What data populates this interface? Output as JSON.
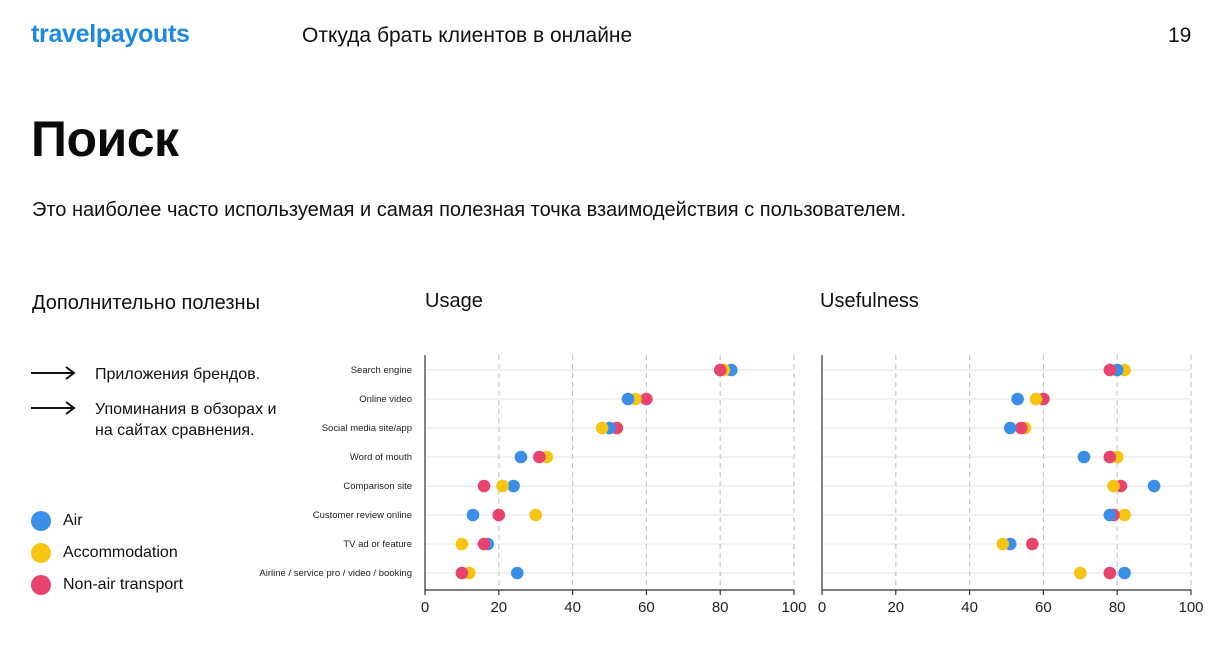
{
  "header": {
    "logo": "travelpayouts",
    "deck_title": "Откуда брать клиентов в онлайне",
    "page_number": "19"
  },
  "main": {
    "title": "Поиск",
    "subtitle": "Это наиболее часто используемая и самая полезная точка взаимодействия с пользователем."
  },
  "extra": {
    "title": "Дополнительно полезны",
    "items": [
      {
        "label": "Приложения брендов."
      },
      {
        "label": "Упоминания в обзорах и на сайтах сравнения."
      }
    ]
  },
  "legend": {
    "items": [
      {
        "label": "Air",
        "color": "#3b8ee8"
      },
      {
        "label": "Accommodation",
        "color": "#f7c412"
      },
      {
        "label": "Non-air transport",
        "color": "#e8436d"
      }
    ]
  },
  "chart_data": [
    {
      "type": "scatter",
      "title": "Usage",
      "categories": [
        "Search engine",
        "Online video",
        "Social media site/app",
        "Word of mouth",
        "Comparison site",
        "Customer review online",
        "TV ad or feature",
        "Airline / service pro / video / booking"
      ],
      "xlim": [
        0,
        100
      ],
      "xticks": [
        0,
        20,
        40,
        60,
        80,
        100
      ],
      "series": [
        {
          "name": "Air",
          "color": "#3b8ee8",
          "values": [
            83,
            55,
            50,
            26,
            24,
            13,
            17,
            25
          ]
        },
        {
          "name": "Accommodation",
          "color": "#f7c412",
          "values": [
            81,
            57,
            48,
            33,
            21,
            30,
            10,
            12
          ]
        },
        {
          "name": "Non-air transport",
          "color": "#e8436d",
          "values": [
            80,
            60,
            52,
            31,
            16,
            20,
            16,
            10
          ]
        }
      ]
    },
    {
      "type": "scatter",
      "title": "Usefulness",
      "categories": [
        "Search engine",
        "Online video",
        "Social media site/app",
        "Word of mouth",
        "Comparison site",
        "Customer review online",
        "TV ad or feature",
        "Airline / service pro / video / booking"
      ],
      "xlim": [
        0,
        100
      ],
      "xticks": [
        0,
        20,
        40,
        60,
        80,
        100
      ],
      "series": [
        {
          "name": "Air",
          "color": "#3b8ee8",
          "values": [
            80,
            53,
            51,
            71,
            90,
            78,
            51,
            82
          ]
        },
        {
          "name": "Accommodation",
          "color": "#f7c412",
          "values": [
            82,
            58,
            55,
            80,
            79,
            82,
            49,
            70
          ]
        },
        {
          "name": "Non-air transport",
          "color": "#e8436d",
          "values": [
            78,
            60,
            54,
            78,
            81,
            79,
            57,
            78
          ]
        }
      ]
    }
  ]
}
